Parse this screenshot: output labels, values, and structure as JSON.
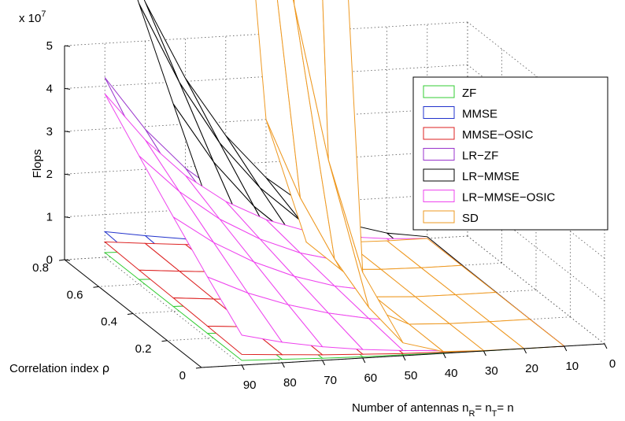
{
  "chart_data": {
    "type": "surface3d",
    "zlabel": "Flops",
    "ylabel_prefix": "Correlation index ",
    "ylabel_symbol": "ρ",
    "xlabel": {
      "t1": "Number of antennas n",
      "s1": "R",
      "t2": "= n",
      "s2": "T",
      "t3": "= n"
    },
    "z_multiplier": {
      "base": "x 10",
      "exp": "7"
    },
    "x_ticks": [
      "90",
      "80",
      "70",
      "60",
      "50",
      "40",
      "30",
      "20",
      "10",
      "0"
    ],
    "y_ticks": [
      "0",
      "0.2",
      "0.4",
      "0.6",
      "0.8"
    ],
    "z_ticks": [
      "0",
      "1",
      "2",
      "3",
      "4",
      "5"
    ],
    "xlim": [
      0,
      100
    ],
    "ylim": [
      0,
      0.8
    ],
    "zlim": [
      0,
      5
    ],
    "grid": true,
    "legend_position": "top-right",
    "colors": {
      "ZF": "#33cc33",
      "MMSE": "#2233cc",
      "MMSE-OSIC": "#dd2222",
      "LR-ZF": "#9933cc",
      "LR-MMSE": "#000000",
      "LR-MMSE-OSIC": "#ee44ee",
      "SD": "#ee9922"
    },
    "antennas": [
      10,
      20,
      30,
      40,
      50,
      60,
      70,
      80,
      90
    ],
    "rho": [
      0,
      0.2,
      0.4,
      0.6,
      0.8
    ],
    "series": [
      {
        "name": "ZF",
        "color": "#33cc33",
        "values": [
          [
            0.0,
            0.0,
            0.0,
            0.0,
            0.0
          ],
          [
            0.0,
            0.0,
            0.0,
            0.0,
            0.0
          ],
          [
            0.0,
            0.0,
            0.0,
            0.0,
            0.0
          ],
          [
            0.01,
            0.01,
            0.01,
            0.01,
            0.01
          ],
          [
            0.02,
            0.02,
            0.02,
            0.02,
            0.02
          ],
          [
            0.03,
            0.03,
            0.03,
            0.03,
            0.03
          ],
          [
            0.05,
            0.05,
            0.05,
            0.05,
            0.05
          ],
          [
            0.08,
            0.08,
            0.08,
            0.08,
            0.08
          ],
          [
            0.11,
            0.11,
            0.11,
            0.11,
            0.11
          ]
        ]
      },
      {
        "name": "MMSE",
        "color": "#2233cc",
        "values": [
          [
            0.0,
            0.0,
            0.0,
            0.0,
            0.0
          ],
          [
            0.01,
            0.01,
            0.01,
            0.01,
            0.01
          ],
          [
            0.02,
            0.02,
            0.02,
            0.03,
            0.03
          ],
          [
            0.04,
            0.05,
            0.06,
            0.06,
            0.07
          ],
          [
            0.07,
            0.08,
            0.1,
            0.11,
            0.13
          ],
          [
            0.12,
            0.14,
            0.16,
            0.18,
            0.21
          ],
          [
            0.18,
            0.21,
            0.25,
            0.28,
            0.32
          ],
          [
            0.25,
            0.3,
            0.35,
            0.4,
            0.45
          ],
          [
            0.35,
            0.41,
            0.47,
            0.54,
            0.6
          ]
        ]
      },
      {
        "name": "MMSE-OSIC",
        "color": "#dd2222",
        "values": [
          [
            0.0,
            0.0,
            0.0,
            0.0,
            0.0
          ],
          [
            0.01,
            0.01,
            0.01,
            0.01,
            0.01
          ],
          [
            0.01,
            0.01,
            0.02,
            0.02,
            0.02
          ],
          [
            0.03,
            0.03,
            0.04,
            0.04,
            0.04
          ],
          [
            0.05,
            0.06,
            0.06,
            0.07,
            0.08
          ],
          [
            0.09,
            0.1,
            0.11,
            0.12,
            0.13
          ],
          [
            0.13,
            0.15,
            0.16,
            0.18,
            0.19
          ],
          [
            0.19,
            0.21,
            0.23,
            0.25,
            0.27
          ],
          [
            0.25,
            0.28,
            0.31,
            0.33,
            0.36
          ]
        ]
      },
      {
        "name": "LR-ZF",
        "color": "#9933cc",
        "values": [
          [
            0.0,
            0.0,
            0.0,
            0.0,
            0.0
          ],
          [
            0.01,
            0.02,
            0.03,
            0.04,
            0.05
          ],
          [
            0.03,
            0.06,
            0.09,
            0.12,
            0.16
          ],
          [
            0.07,
            0.14,
            0.21,
            0.29,
            0.37
          ],
          [
            0.13,
            0.27,
            0.41,
            0.56,
            0.72
          ],
          [
            0.23,
            0.47,
            0.71,
            0.97,
            1.24
          ],
          [
            0.37,
            0.74,
            1.13,
            1.54,
            1.97
          ],
          [
            0.55,
            1.11,
            1.69,
            2.3,
            2.94
          ],
          [
            0.78,
            1.58,
            2.41,
            3.27,
            4.2
          ]
        ]
      },
      {
        "name": "LR-MMSE",
        "color": "#000000",
        "values": [
          [
            0.0,
            0.0,
            0.01,
            0.02,
            0.04
          ],
          [
            0.02,
            0.05,
            0.09,
            0.13,
            0.18
          ],
          [
            0.06,
            0.15,
            0.24,
            0.34,
            0.45
          ],
          [
            0.15,
            0.32,
            0.51,
            0.71,
            0.92
          ],
          [
            0.28,
            0.59,
            0.92,
            1.27,
            1.64
          ],
          [
            0.48,
            0.99,
            1.53,
            2.09,
            2.68
          ],
          [
            0.76,
            1.53,
            2.34,
            3.19,
            4.07
          ],
          [
            1.13,
            2.25,
            3.43,
            4.66,
            5.91
          ],
          [
            1.6,
            3.18,
            4.84,
            6.55,
            8.3
          ]
        ]
      },
      {
        "name": "LR-MMSE-OSIC",
        "color": "#ee44ee",
        "values": [
          [
            0.0,
            0.0,
            0.0,
            0.0,
            0.0
          ],
          [
            0.01,
            0.02,
            0.03,
            0.04,
            0.05
          ],
          [
            0.03,
            0.06,
            0.09,
            0.12,
            0.15
          ],
          [
            0.07,
            0.13,
            0.2,
            0.27,
            0.34
          ],
          [
            0.12,
            0.24,
            0.37,
            0.51,
            0.66
          ],
          [
            0.2,
            0.42,
            0.65,
            0.89,
            1.14
          ],
          [
            0.32,
            0.67,
            1.04,
            1.41,
            1.8
          ],
          [
            0.48,
            1.0,
            1.55,
            2.11,
            2.69
          ],
          [
            0.7,
            1.43,
            2.2,
            3.0,
            3.82
          ]
        ]
      },
      {
        "name": "SD",
        "color": "#ee9922",
        "values": [
          [
            0.0,
            0.0,
            0.0,
            0.0,
            0.0
          ],
          [
            0.0,
            0.0,
            0.0,
            0.0,
            0.0
          ],
          [
            0.01,
            0.01,
            0.01,
            0.02,
            0.02
          ],
          [
            0.04,
            0.05,
            0.06,
            0.07,
            0.08
          ],
          [
            0.3,
            0.5,
            1.0,
            1.8,
            3.0
          ],
          [
            2.0,
            4.0,
            7.0,
            10.0,
            14.0
          ],
          [
            20.0,
            30.0,
            40.0,
            50.0,
            60.0
          ],
          [
            60.0,
            80.0,
            100.0,
            120.0,
            140.0
          ],
          [
            140.0,
            170.0,
            200.0,
            230.0,
            260.0
          ]
        ]
      }
    ],
    "legend": [
      "ZF",
      "MMSE",
      "MMSE−OSIC",
      "LR−ZF",
      "LR−MMSE",
      "LR−MMSE−OSIC",
      "SD"
    ]
  }
}
